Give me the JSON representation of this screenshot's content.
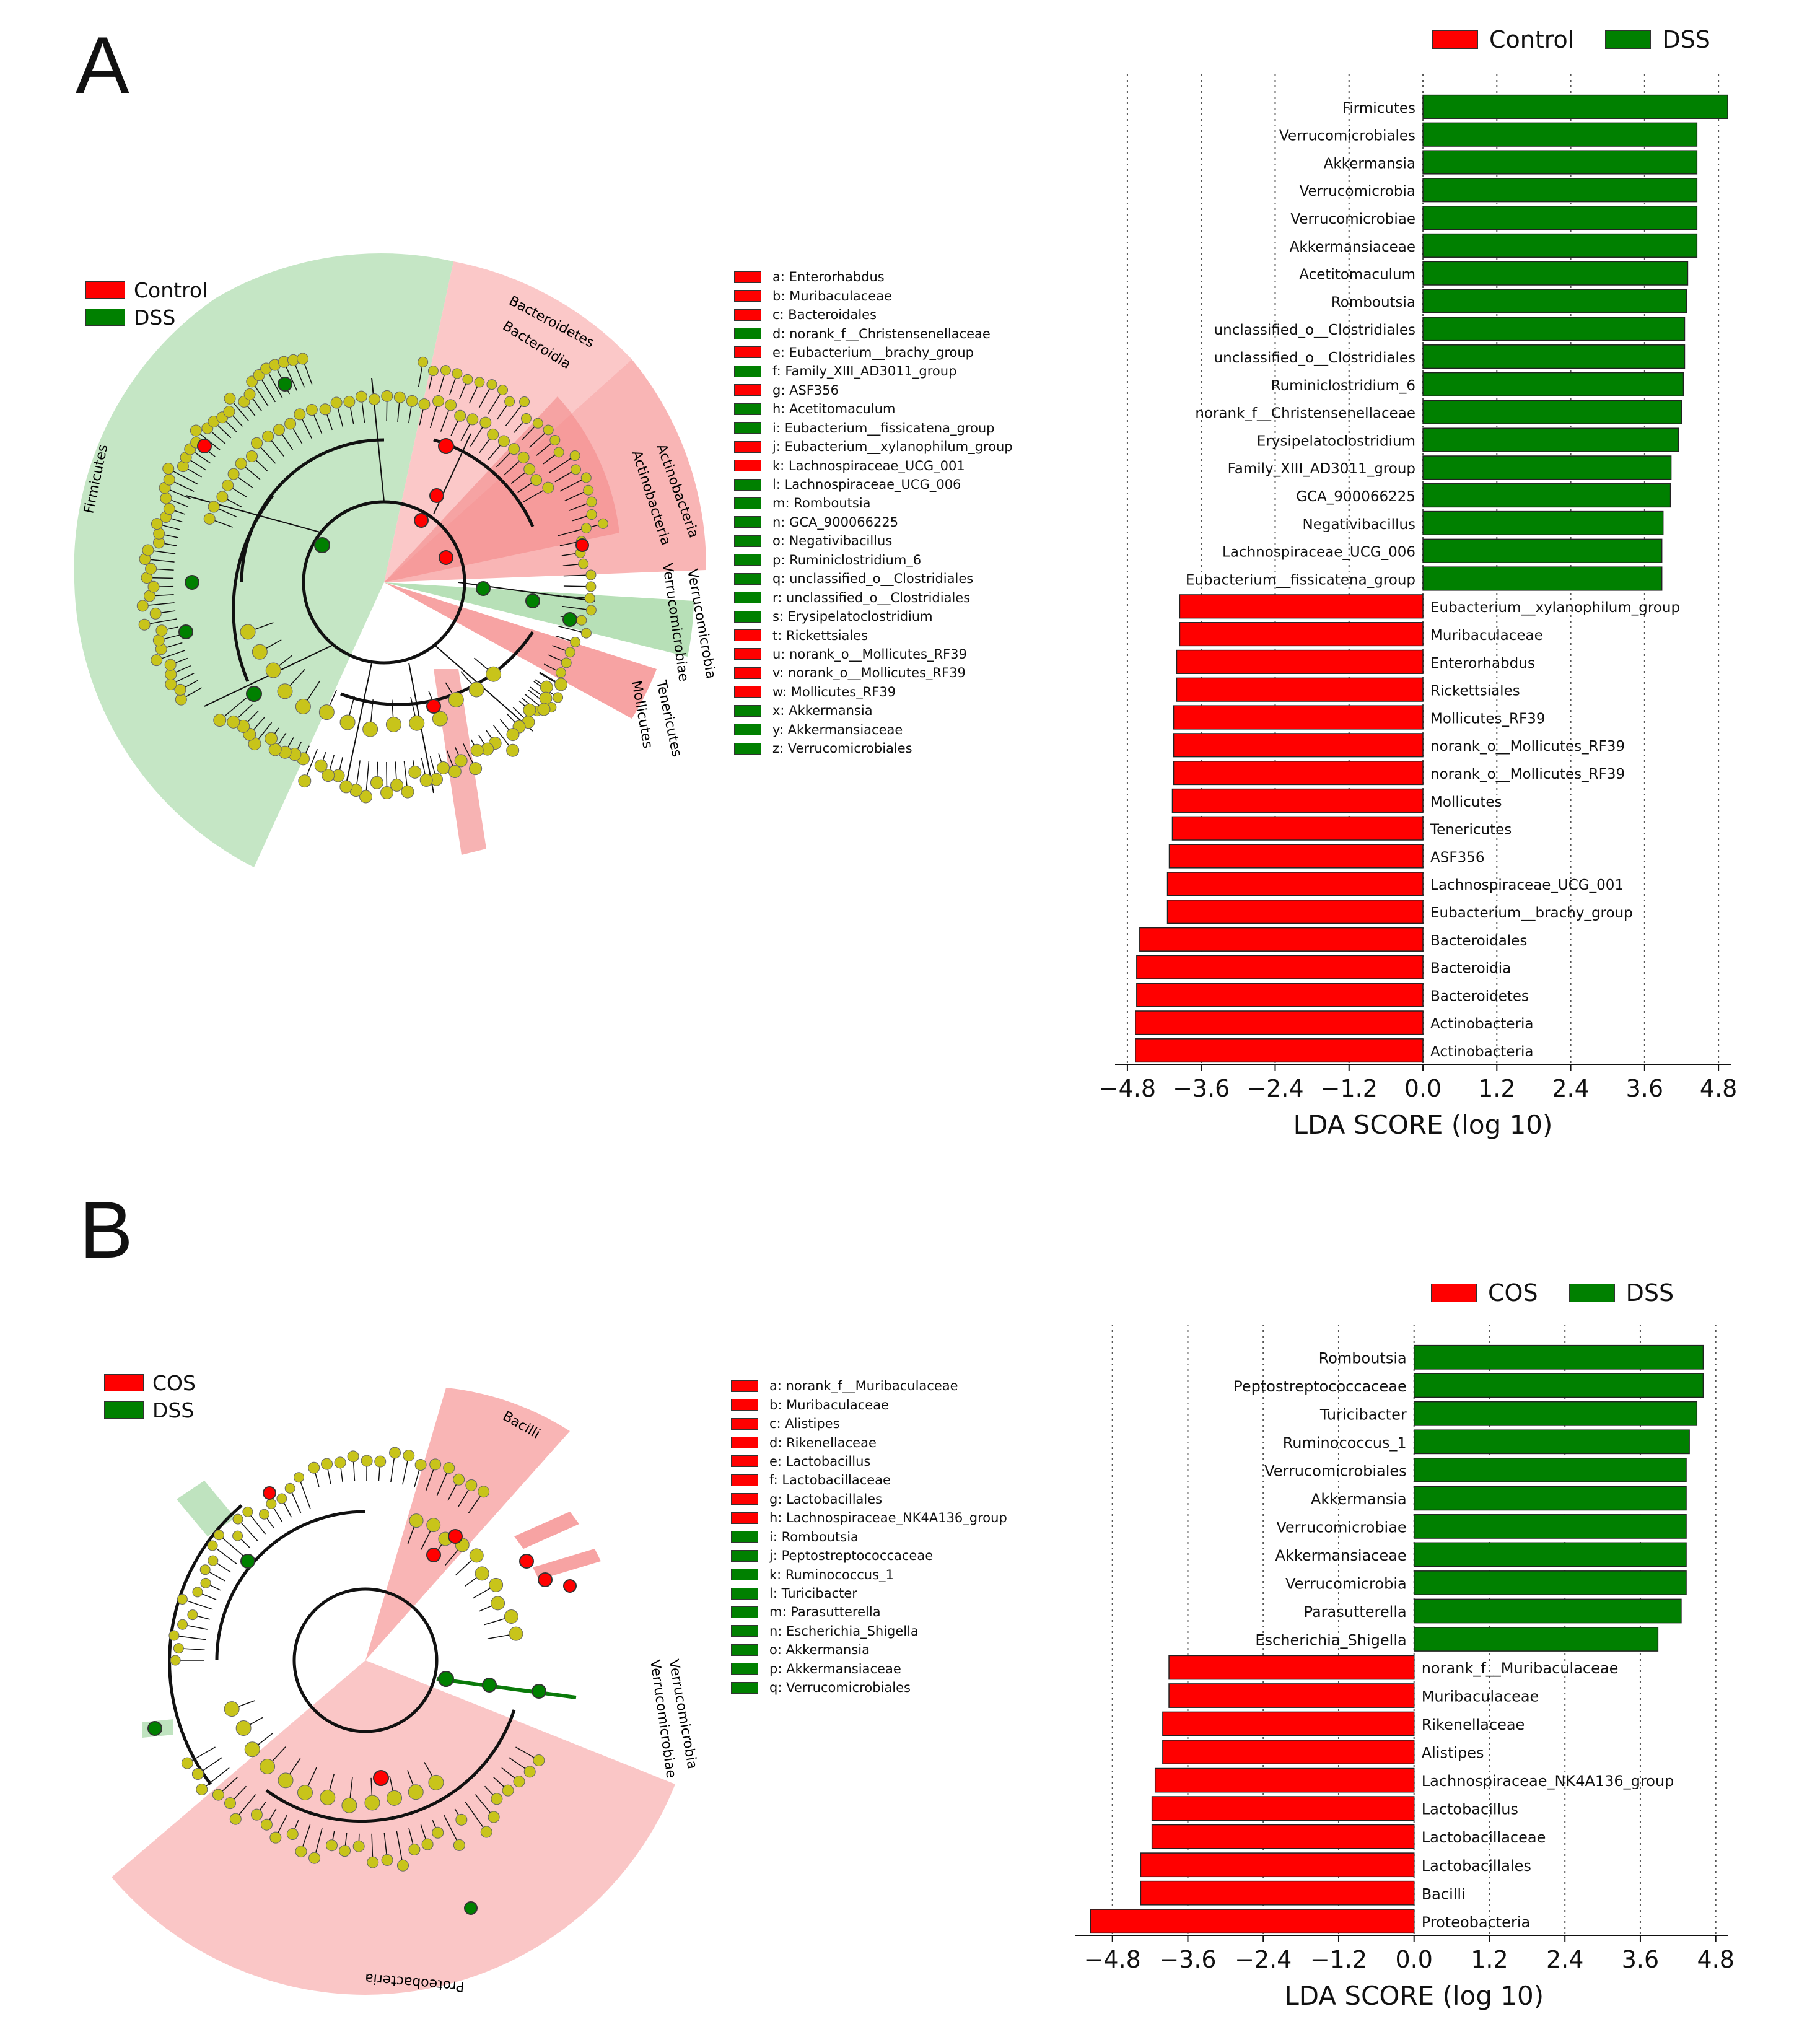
{
  "colors": {
    "control": "#ff0000",
    "dss": "#008000",
    "node": "#c8c41a",
    "red_shade": "#f7a3a3",
    "green_shade": "#b7e0b7"
  },
  "panelA": {
    "label": "A",
    "clado_legend": [
      {
        "name": "Control",
        "color": "#ff0000"
      },
      {
        "name": "DSS",
        "color": "#008000"
      }
    ],
    "clado_labels": {
      "firmicutes": "Firmicutes",
      "bacteroidetes": "Bacteroidetes",
      "bacteroidia": "Bacteroidia",
      "actinobacteria1": "Actinobacteria",
      "actinobacteria2": "Actinobacteria",
      "verrucomicrobia": "Verrucomicrobia",
      "verrucomicrobiae": "Verrucomicrobiae",
      "tenericutes": "Tenericutes",
      "mollicutes": "Mollicutes"
    },
    "key": [
      {
        "text": "a: Enterorhabdus",
        "group": "control"
      },
      {
        "text": "b: Muribaculaceae",
        "group": "control"
      },
      {
        "text": "c: Bacteroidales",
        "group": "control"
      },
      {
        "text": "d: norank_f__Christensenellaceae",
        "group": "dss"
      },
      {
        "text": "e: Eubacterium__brachy_group",
        "group": "control"
      },
      {
        "text": "f: Family_XIII_AD3011_group",
        "group": "dss"
      },
      {
        "text": "g: ASF356",
        "group": "control"
      },
      {
        "text": "h: Acetitomaculum",
        "group": "dss"
      },
      {
        "text": "i: Eubacterium__fissicatena_group",
        "group": "dss"
      },
      {
        "text": "j: Eubacterium__xylanophilum_group",
        "group": "control"
      },
      {
        "text": "k: Lachnospiraceae_UCG_001",
        "group": "control"
      },
      {
        "text": "l: Lachnospiraceae_UCG_006",
        "group": "dss"
      },
      {
        "text": "m: Romboutsia",
        "group": "dss"
      },
      {
        "text": "n: GCA_900066225",
        "group": "dss"
      },
      {
        "text": "o: Negativibacillus",
        "group": "dss"
      },
      {
        "text": "p: Ruminiclostridium_6",
        "group": "dss"
      },
      {
        "text": "q: unclassified_o__Clostridiales",
        "group": "dss"
      },
      {
        "text": "r: unclassified_o__Clostridiales",
        "group": "dss"
      },
      {
        "text": "s: Erysipelatoclostridium",
        "group": "dss"
      },
      {
        "text": "t: Rickettsiales",
        "group": "control"
      },
      {
        "text": "u: norank_o__Mollicutes_RF39",
        "group": "control"
      },
      {
        "text": "v: norank_o__Mollicutes_RF39",
        "group": "control"
      },
      {
        "text": "w: Mollicutes_RF39",
        "group": "control"
      },
      {
        "text": "x: Akkermansia",
        "group": "dss"
      },
      {
        "text": "y: Akkermansiaceae",
        "group": "dss"
      },
      {
        "text": "z: Verrucomicrobiales",
        "group": "dss"
      }
    ]
  },
  "panelB": {
    "label": "B",
    "clado_legend": [
      {
        "name": "COS",
        "color": "#ff0000"
      },
      {
        "name": "DSS",
        "color": "#008000"
      }
    ],
    "clado_labels": {
      "bacilli": "Bacilli",
      "proteobacteria": "Proteobacteria",
      "verrucomicrobia": "Verrucomicrobia",
      "verrucomicrobiae": "Verrucomicrobiae"
    },
    "key": [
      {
        "text": "a: norank_f__Muribaculaceae",
        "group": "control"
      },
      {
        "text": "b: Muribaculaceae",
        "group": "control"
      },
      {
        "text": "c: Alistipes",
        "group": "control"
      },
      {
        "text": "d: Rikenellaceae",
        "group": "control"
      },
      {
        "text": "e: Lactobacillus",
        "group": "control"
      },
      {
        "text": "f: Lactobacillaceae",
        "group": "control"
      },
      {
        "text": "g: Lactobacillales",
        "group": "control"
      },
      {
        "text": "h: Lachnospiraceae_NK4A136_group",
        "group": "control"
      },
      {
        "text": "i: Romboutsia",
        "group": "dss"
      },
      {
        "text": "j: Peptostreptococcaceae",
        "group": "dss"
      },
      {
        "text": "k: Ruminococcus_1",
        "group": "dss"
      },
      {
        "text": "l: Turicibacter",
        "group": "dss"
      },
      {
        "text": "m: Parasutterella",
        "group": "dss"
      },
      {
        "text": "n: Escherichia_Shigella",
        "group": "dss"
      },
      {
        "text": "o: Akkermansia",
        "group": "dss"
      },
      {
        "text": "p: Akkermansiaceae",
        "group": "dss"
      },
      {
        "text": "q: Verrucomicrobiales",
        "group": "dss"
      }
    ]
  },
  "chart_data": [
    {
      "type": "bar",
      "orientation": "horizontal",
      "title": "",
      "xlabel": "LDA SCORE (log 10)",
      "xlim": [
        -4.9,
        5.0
      ],
      "xticks": [
        "-4.8",
        "-3.6",
        "-2.4",
        "-1.2",
        "0.0",
        "1.2",
        "2.4",
        "3.6",
        "4.8"
      ],
      "legend": [
        {
          "name": "Control",
          "color": "#ff0000"
        },
        {
          "name": "DSS",
          "color": "#008000"
        }
      ],
      "legend_position": "top",
      "grid": "vertical dotted",
      "bars": [
        {
          "label": "Firmicutes",
          "value": 4.95,
          "group": "DSS"
        },
        {
          "label": "Verrucomicrobiales",
          "value": 4.45,
          "group": "DSS"
        },
        {
          "label": "Akkermansia",
          "value": 4.45,
          "group": "DSS"
        },
        {
          "label": "Verrucomicrobia",
          "value": 4.45,
          "group": "DSS"
        },
        {
          "label": "Verrucomicrobiae",
          "value": 4.45,
          "group": "DSS"
        },
        {
          "label": "Akkermansiaceae",
          "value": 4.45,
          "group": "DSS"
        },
        {
          "label": "Acetitomaculum",
          "value": 4.3,
          "group": "DSS"
        },
        {
          "label": "Romboutsia",
          "value": 4.28,
          "group": "DSS"
        },
        {
          "label": "unclassified_o__Clostridiales",
          "value": 4.25,
          "group": "DSS"
        },
        {
          "label": "unclassified_o__Clostridiales",
          "value": 4.25,
          "group": "DSS"
        },
        {
          "label": "Ruminiclostridium_6",
          "value": 4.23,
          "group": "DSS"
        },
        {
          "label": "norank_f__Christensenellaceae",
          "value": 4.2,
          "group": "DSS"
        },
        {
          "label": "Erysipelatoclostridium",
          "value": 4.15,
          "group": "DSS"
        },
        {
          "label": "Family_XIII_AD3011_group",
          "value": 4.03,
          "group": "DSS"
        },
        {
          "label": "GCA_900066225",
          "value": 4.02,
          "group": "DSS"
        },
        {
          "label": "Negativibacillus",
          "value": 3.9,
          "group": "DSS"
        },
        {
          "label": "Lachnospiraceae_UCG_006",
          "value": 3.88,
          "group": "DSS"
        },
        {
          "label": "Eubacterium__fissicatena_group",
          "value": 3.88,
          "group": "DSS"
        },
        {
          "label": "Eubacterium__xylanophilum_group",
          "value": -3.95,
          "group": "Control"
        },
        {
          "label": "Muribaculaceae",
          "value": -3.95,
          "group": "Control"
        },
        {
          "label": "Enterorhabdus",
          "value": -4.0,
          "group": "Control"
        },
        {
          "label": "Rickettsiales",
          "value": -4.0,
          "group": "Control"
        },
        {
          "label": "Mollicutes_RF39",
          "value": -4.05,
          "group": "Control"
        },
        {
          "label": "norank_o__Mollicutes_RF39",
          "value": -4.05,
          "group": "Control"
        },
        {
          "label": "norank_o__Mollicutes_RF39",
          "value": -4.05,
          "group": "Control"
        },
        {
          "label": "Mollicutes",
          "value": -4.07,
          "group": "Control"
        },
        {
          "label": "Tenericutes",
          "value": -4.07,
          "group": "Control"
        },
        {
          "label": "ASF356",
          "value": -4.12,
          "group": "Control"
        },
        {
          "label": "Lachnospiraceae_UCG_001",
          "value": -4.15,
          "group": "Control"
        },
        {
          "label": "Eubacterium__brachy_group",
          "value": -4.15,
          "group": "Control"
        },
        {
          "label": "Bacteroidales",
          "value": -4.6,
          "group": "Control"
        },
        {
          "label": "Bacteroidia",
          "value": -4.65,
          "group": "Control"
        },
        {
          "label": "Bacteroidetes",
          "value": -4.65,
          "group": "Control"
        },
        {
          "label": "Actinobacteria",
          "value": -4.67,
          "group": "Control"
        },
        {
          "label": "Actinobacteria",
          "value": -4.67,
          "group": "Control"
        }
      ]
    },
    {
      "type": "bar",
      "orientation": "horizontal",
      "title": "",
      "xlabel": "LDA SCORE (log 10)",
      "xlim": [
        -5.3,
        5.0
      ],
      "xticks": [
        "-4.8",
        "-3.6",
        "-2.4",
        "-1.2",
        "0.0",
        "1.2",
        "2.4",
        "3.6",
        "4.8"
      ],
      "legend": [
        {
          "name": "COS",
          "color": "#ff0000"
        },
        {
          "name": "DSS",
          "color": "#008000"
        }
      ],
      "legend_position": "top",
      "grid": "vertical dotted",
      "bars": [
        {
          "label": "Romboutsia",
          "value": 4.6,
          "group": "DSS"
        },
        {
          "label": "Peptostreptococcaceae",
          "value": 4.6,
          "group": "DSS"
        },
        {
          "label": "Turicibacter",
          "value": 4.5,
          "group": "DSS"
        },
        {
          "label": "Ruminococcus_1",
          "value": 4.38,
          "group": "DSS"
        },
        {
          "label": "Verrucomicrobiales",
          "value": 4.33,
          "group": "DSS"
        },
        {
          "label": "Akkermansia",
          "value": 4.33,
          "group": "DSS"
        },
        {
          "label": "Verrucomicrobiae",
          "value": 4.33,
          "group": "DSS"
        },
        {
          "label": "Akkermansiaceae",
          "value": 4.33,
          "group": "DSS"
        },
        {
          "label": "Verrucomicrobia",
          "value": 4.33,
          "group": "DSS"
        },
        {
          "label": "Parasutterella",
          "value": 4.25,
          "group": "DSS"
        },
        {
          "label": "Escherichia_Shigella",
          "value": 3.88,
          "group": "DSS"
        },
        {
          "label": "norank_f__Muribaculaceae",
          "value": -3.9,
          "group": "COS"
        },
        {
          "label": "Muribaculaceae",
          "value": -3.9,
          "group": "COS"
        },
        {
          "label": "Rikenellaceae",
          "value": -4.0,
          "group": "COS"
        },
        {
          "label": "Alistipes",
          "value": -4.0,
          "group": "COS"
        },
        {
          "label": "Lachnospiraceae_NK4A136_group",
          "value": -4.12,
          "group": "COS"
        },
        {
          "label": "Lactobacillus",
          "value": -4.17,
          "group": "COS"
        },
        {
          "label": "Lactobacillaceae",
          "value": -4.17,
          "group": "COS"
        },
        {
          "label": "Lactobacillales",
          "value": -4.35,
          "group": "COS"
        },
        {
          "label": "Bacilli",
          "value": -4.35,
          "group": "COS"
        },
        {
          "label": "Proteobacteria",
          "value": -5.15,
          "group": "COS"
        }
      ]
    }
  ]
}
